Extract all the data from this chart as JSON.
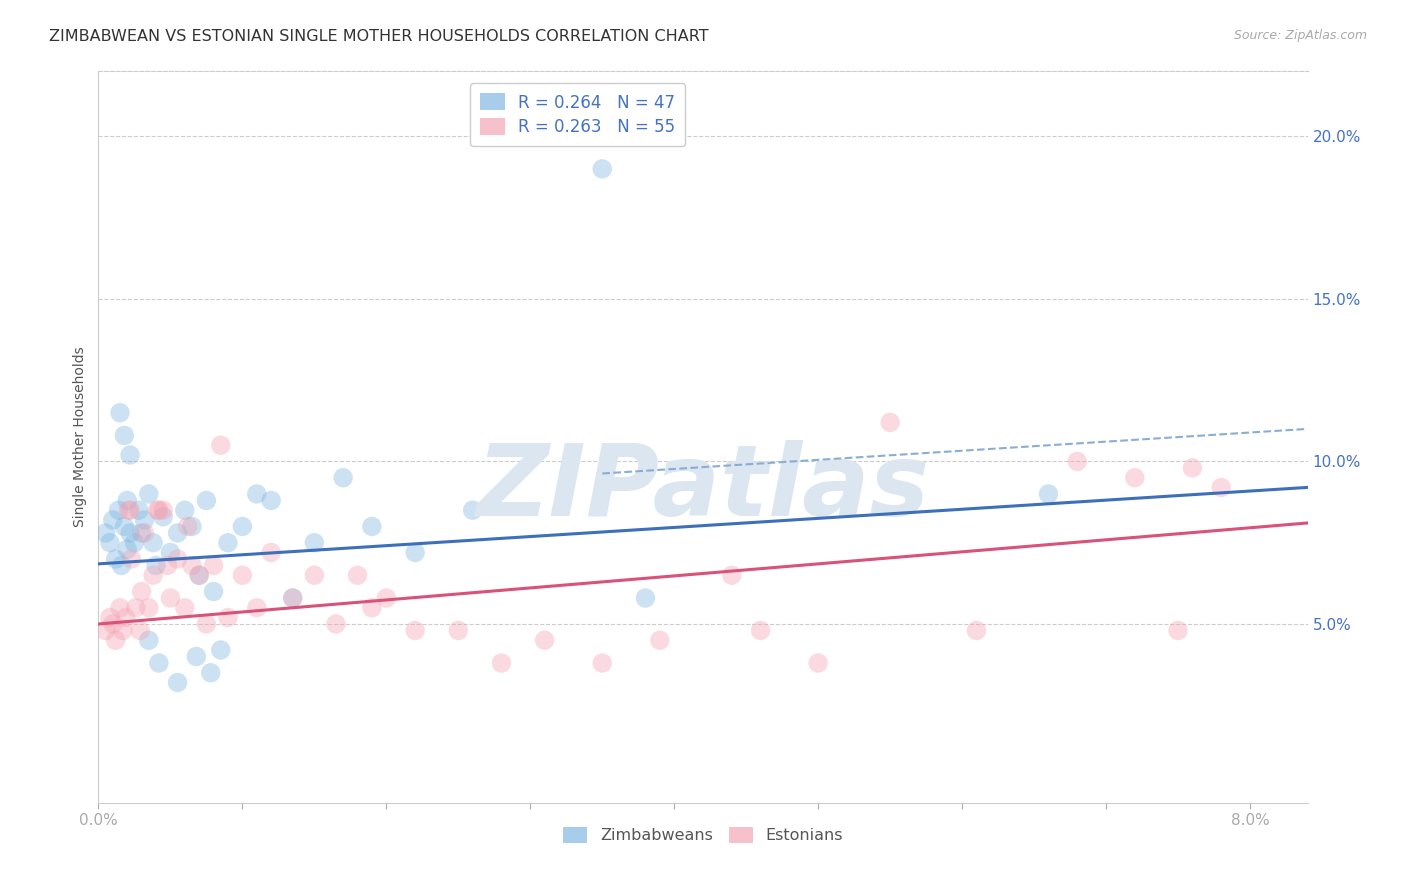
{
  "title": "ZIMBABWEAN VS ESTONIAN SINGLE MOTHER HOUSEHOLDS CORRELATION CHART",
  "source": "Source: ZipAtlas.com",
  "ylabel": "Single Mother Households",
  "xlim": [
    0.0,
    8.4
  ],
  "ylim": [
    -0.5,
    22.0
  ],
  "legend1_label": "R = 0.264   N = 47",
  "legend2_label": "R = 0.263   N = 55",
  "zimbabwean_color": "#7ab3e0",
  "estonian_color": "#f4a0b0",
  "watermark_color": "#dce6f0",
  "background_color": "#ffffff",
  "grid_color": "#cccccc",
  "zim_x": [
    0.05,
    0.08,
    0.1,
    0.12,
    0.14,
    0.16,
    0.18,
    0.2,
    0.2,
    0.22,
    0.25,
    0.28,
    0.3,
    0.32,
    0.35,
    0.38,
    0.4,
    0.45,
    0.5,
    0.55,
    0.6,
    0.65,
    0.7,
    0.75,
    0.8,
    0.9,
    1.0,
    1.1,
    1.2,
    1.35,
    1.5,
    1.7,
    1.9,
    2.2,
    2.6,
    0.15,
    0.18,
    0.22,
    0.35,
    0.42,
    0.55,
    0.68,
    0.78,
    0.85,
    3.8,
    6.6,
    3.5
  ],
  "zim_y": [
    7.8,
    7.5,
    8.2,
    7.0,
    8.5,
    6.8,
    8.0,
    7.3,
    8.8,
    7.8,
    7.5,
    8.5,
    7.8,
    8.2,
    9.0,
    7.5,
    6.8,
    8.3,
    7.2,
    7.8,
    8.5,
    8.0,
    6.5,
    8.8,
    6.0,
    7.5,
    8.0,
    9.0,
    8.8,
    5.8,
    7.5,
    9.5,
    8.0,
    7.2,
    8.5,
    11.5,
    10.8,
    10.2,
    4.5,
    3.8,
    3.2,
    4.0,
    3.5,
    4.2,
    5.8,
    9.0,
    19.0
  ],
  "est_x": [
    0.05,
    0.08,
    0.1,
    0.12,
    0.15,
    0.17,
    0.19,
    0.21,
    0.23,
    0.26,
    0.29,
    0.32,
    0.35,
    0.38,
    0.41,
    0.45,
    0.5,
    0.55,
    0.6,
    0.65,
    0.7,
    0.75,
    0.8,
    0.9,
    1.0,
    1.1,
    1.2,
    1.35,
    1.5,
    1.65,
    1.8,
    2.0,
    2.2,
    2.5,
    2.8,
    3.1,
    3.5,
    3.9,
    4.4,
    5.0,
    5.5,
    6.1,
    6.8,
    7.2,
    7.5,
    0.3,
    0.22,
    0.42,
    0.62,
    1.9,
    4.6,
    7.6,
    7.8,
    0.48,
    0.85
  ],
  "est_y": [
    4.8,
    5.2,
    5.0,
    4.5,
    5.5,
    4.8,
    5.2,
    8.5,
    7.0,
    5.5,
    4.8,
    7.8,
    5.5,
    6.5,
    8.5,
    8.5,
    5.8,
    7.0,
    5.5,
    6.8,
    6.5,
    5.0,
    6.8,
    5.2,
    6.5,
    5.5,
    7.2,
    5.8,
    6.5,
    5.0,
    6.5,
    5.8,
    4.8,
    4.8,
    3.8,
    4.5,
    3.8,
    4.5,
    6.5,
    3.8,
    11.2,
    4.8,
    10.0,
    9.5,
    4.8,
    6.0,
    8.5,
    8.5,
    8.0,
    5.5,
    4.8,
    9.8,
    9.2,
    6.8,
    10.5
  ],
  "title_fontsize": 11.5,
  "label_fontsize": 10,
  "tick_fontsize": 11,
  "marker_size": 14,
  "marker_alpha": 0.38,
  "line_width": 2.2
}
